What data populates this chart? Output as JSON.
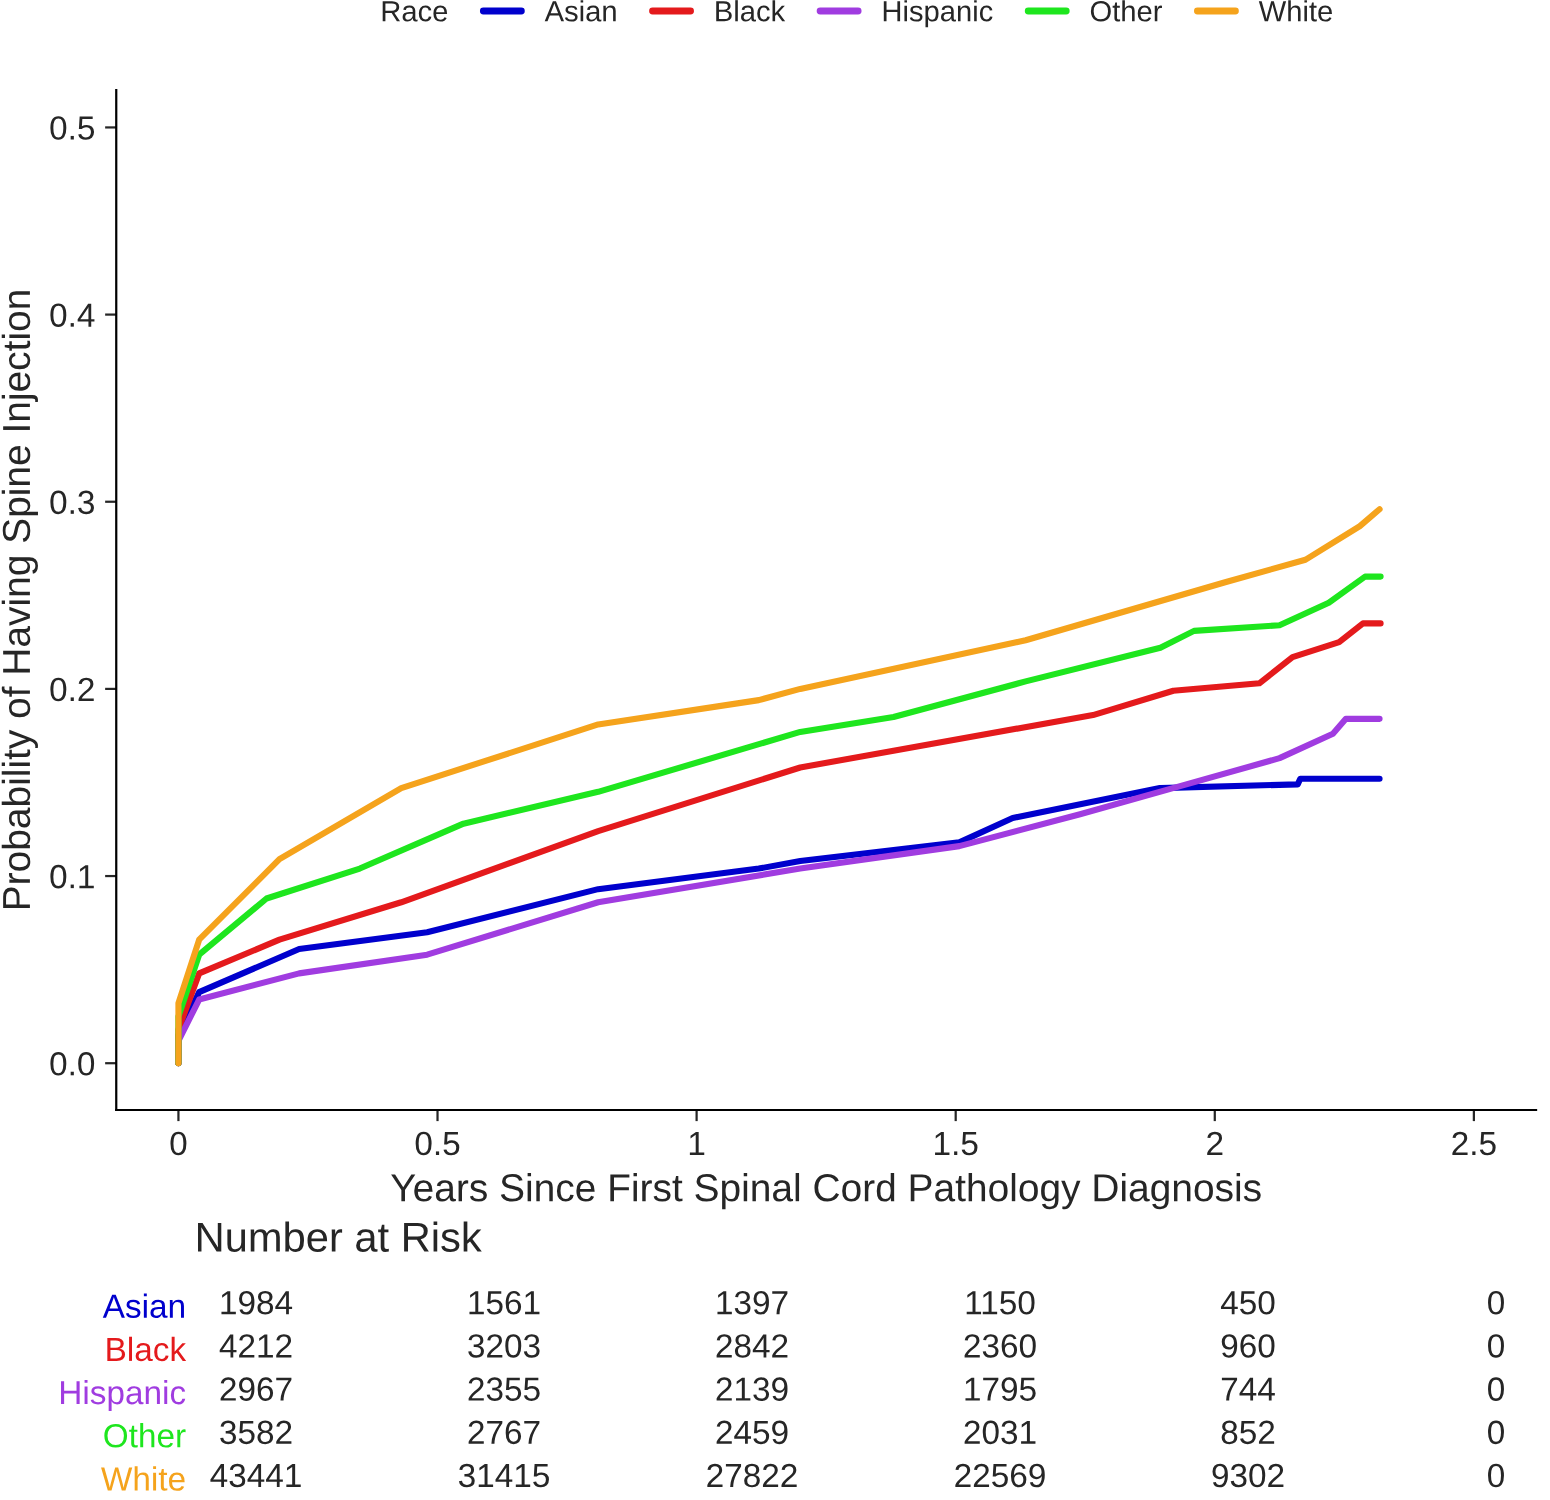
{
  "chart_data": [
    {
      "type": "line",
      "xlabel": "Years Since First Spinal Cord Pathology Diagnosis",
      "ylabel": "Probability of Having Spine Injection",
      "legend_title": "Race",
      "legend": "top",
      "grid": false,
      "xlim": [
        -0.12,
        2.62
      ],
      "ylim": [
        -0.025,
        0.52
      ],
      "xticks": [
        0,
        0.5,
        1,
        1.5,
        2,
        2.5
      ],
      "yticks": [
        {
          "value": 0,
          "label": "0.0"
        },
        0.1,
        0.2,
        0.3,
        0.4,
        0.5
      ],
      "series": [
        {
          "name": "Asian",
          "color": "#0000cd",
          "x": [
            0,
            0,
            0.04,
            0.233,
            0.48,
            0.81,
            1.12,
            1.2,
            1.507,
            1.61,
            1.894,
            2.16,
            2.165,
            2.318
          ],
          "values": [
            0,
            0.015,
            0.038,
            0.061,
            0.07,
            0.093,
            0.104,
            0.108,
            0.118,
            0.131,
            0.147,
            0.149,
            0.152,
            0.152
          ]
        },
        {
          "name": "Black",
          "color": "#e41a1c",
          "x": [
            0,
            0,
            0.04,
            0.195,
            0.43,
            0.81,
            1.2,
            1.38,
            1.765,
            1.92,
            2.086,
            2.15,
            2.24,
            2.286,
            2.32
          ],
          "values": [
            0,
            0.018,
            0.048,
            0.066,
            0.086,
            0.124,
            0.158,
            0.167,
            0.186,
            0.199,
            0.203,
            0.217,
            0.225,
            0.235,
            0.235
          ]
        },
        {
          "name": "Hispanic",
          "color": "#a03ce0",
          "x": [
            0,
            0,
            0.04,
            0.233,
            0.48,
            0.81,
            1.2,
            1.507,
            1.74,
            1.945,
            2.125,
            2.228,
            2.253,
            2.318
          ],
          "values": [
            0,
            0.012,
            0.034,
            0.048,
            0.058,
            0.086,
            0.104,
            0.116,
            0.133,
            0.149,
            0.163,
            0.176,
            0.184,
            0.184
          ]
        },
        {
          "name": "Other",
          "color": "#1ee61e",
          "x": [
            0,
            0,
            0.04,
            0.17,
            0.35,
            0.55,
            0.81,
            1.2,
            1.38,
            1.635,
            1.895,
            1.96,
            2.125,
            2.22,
            2.29,
            2.32
          ],
          "values": [
            0,
            0.025,
            0.058,
            0.088,
            0.104,
            0.128,
            0.145,
            0.177,
            0.185,
            0.204,
            0.222,
            0.231,
            0.234,
            0.246,
            0.26,
            0.26
          ]
        },
        {
          "name": "White",
          "color": "#f5a31c",
          "x": [
            0,
            0,
            0.04,
            0.195,
            0.43,
            0.81,
            1.12,
            1.2,
            1.635,
            2.02,
            2.175,
            2.28,
            2.318
          ],
          "values": [
            0,
            0.032,
            0.066,
            0.109,
            0.147,
            0.181,
            0.194,
            0.2,
            0.226,
            0.257,
            0.269,
            0.287,
            0.296
          ]
        }
      ]
    },
    {
      "type": "heatmap",
      "title": "Number at Risk",
      "data_labels": true,
      "categories": [
        null,
        null,
        null,
        null,
        null,
        null
      ],
      "y_categories": [
        "Asian",
        "Black",
        "Hispanic",
        "Other",
        "White"
      ],
      "cells": [
        [
          1984,
          1561,
          1397,
          1150,
          450,
          0
        ],
        [
          4212,
          3203,
          2842,
          2360,
          960,
          0
        ],
        [
          2967,
          2355,
          2139,
          1795,
          744,
          0
        ],
        [
          3582,
          2767,
          2459,
          2031,
          852,
          0
        ],
        [
          43441,
          31415,
          27822,
          22569,
          9302,
          0
        ]
      ]
    }
  ]
}
